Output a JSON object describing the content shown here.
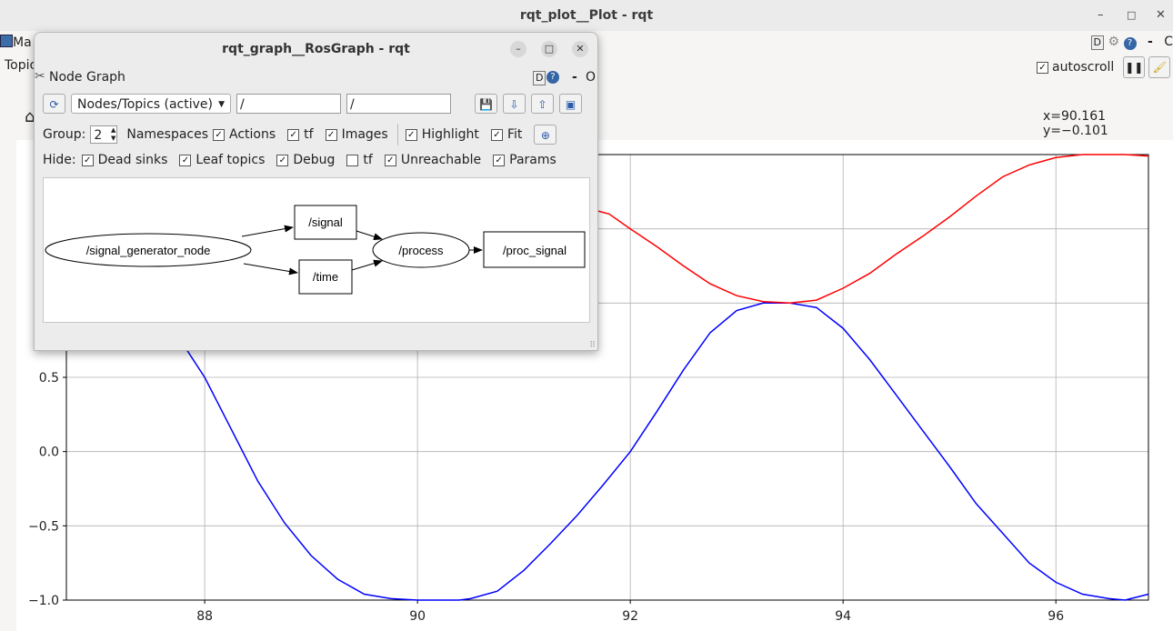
{
  "plot_window": {
    "title": "rqt_plot__Plot - rqt",
    "menu_left": "Ma",
    "topic_label": "Topic",
    "right_header": {
      "d_label": "D",
      "help": "?",
      "dash": "-",
      "close": "C"
    },
    "autoscroll_label": "autoscroll",
    "coord_readout": "x=90.161 y=−0.101",
    "controls": {
      "minimize": "–",
      "maximize": "□",
      "close": "✕"
    }
  },
  "graph_window": {
    "title": "rqt_graph__RosGraph - rqt",
    "controls": {
      "minimize": "–",
      "maximize": "□",
      "close": "✕"
    },
    "plugin_title": "Node Graph",
    "plugin_d": "D",
    "plugin_dash": "-",
    "plugin_o": "O",
    "filter_mode": "Nodes/Topics (active)",
    "node_filter": "/",
    "topic_filter": "/",
    "group_label": "Group:",
    "group_value": "2",
    "options_row1": [
      {
        "label": "Namespaces",
        "checked": false,
        "show_box": false
      },
      {
        "label": "Actions",
        "checked": true
      },
      {
        "label": "tf",
        "checked": true
      },
      {
        "label": "Images",
        "checked": true
      },
      {
        "label": "Highlight",
        "checked": true
      },
      {
        "label": "Fit",
        "checked": true
      }
    ],
    "hide_label": "Hide:",
    "hide_options": [
      {
        "label": "Dead sinks",
        "checked": true
      },
      {
        "label": "Leaf topics",
        "checked": true
      },
      {
        "label": "Debug",
        "checked": true
      },
      {
        "label": "tf",
        "checked": false
      },
      {
        "label": "Unreachable",
        "checked": true
      },
      {
        "label": "Params",
        "checked": true
      }
    ],
    "graph": {
      "nodes": {
        "signal_generator": "/signal_generator_node",
        "signal": "/signal",
        "time": "/time",
        "process": "/process",
        "proc_signal": "/proc_signal"
      }
    }
  },
  "chart_data": {
    "type": "line",
    "x_ticks": [
      88,
      90,
      92,
      94,
      96
    ],
    "y_ticks": [
      "0.5",
      "0.0",
      "−0.5",
      "−1.0"
    ],
    "xlim": [
      86.7,
      96.87
    ],
    "ylim": [
      -1.0,
      2.0
    ],
    "grid": true,
    "colors": {
      "series_1": "#0000ff",
      "series_2": "#ff0000"
    },
    "series": [
      {
        "color": "#0000ff",
        "x": [
          87.8,
          88.0,
          88.25,
          88.5,
          88.75,
          89.0,
          89.25,
          89.5,
          89.75,
          90.0,
          90.25,
          90.39,
          90.5,
          90.75,
          91.0,
          91.25,
          91.5,
          91.75,
          92.0,
          92.25,
          92.5,
          92.75,
          93.0,
          93.25,
          93.5,
          93.75,
          94.0,
          94.25,
          94.5,
          94.75,
          95.0,
          95.25,
          95.5,
          95.75,
          96.0,
          96.25,
          96.5,
          96.65,
          96.87
        ],
        "y": [
          0.72,
          0.5,
          0.15,
          -0.2,
          -0.48,
          -0.7,
          -0.86,
          -0.96,
          -0.99,
          -1.0,
          -1.0,
          -1.0,
          -0.99,
          -0.94,
          -0.8,
          -0.62,
          -0.43,
          -0.22,
          0.0,
          0.27,
          0.55,
          0.8,
          0.95,
          1.0,
          1.0,
          0.97,
          0.83,
          0.62,
          0.38,
          0.14,
          -0.1,
          -0.35,
          -0.55,
          -0.75,
          -0.88,
          -0.96,
          -0.99,
          -1.0,
          -0.96
        ]
      },
      {
        "color": "#ff0000",
        "x": [
          90.0,
          91.0,
          91.8,
          92.0,
          92.25,
          92.5,
          92.75,
          93.0,
          93.25,
          93.5,
          93.75,
          94.0,
          94.25,
          94.5,
          94.75,
          95.0,
          95.25,
          95.5,
          95.75,
          96.0,
          96.25,
          96.5,
          96.65,
          96.87
        ],
        "y": [
          2.0,
          1.75,
          1.6,
          1.5,
          1.38,
          1.25,
          1.13,
          1.05,
          1.01,
          1.0,
          1.02,
          1.1,
          1.2,
          1.33,
          1.45,
          1.58,
          1.72,
          1.85,
          1.93,
          1.98,
          2.0,
          2.0,
          2.0,
          1.99
        ]
      }
    ]
  }
}
